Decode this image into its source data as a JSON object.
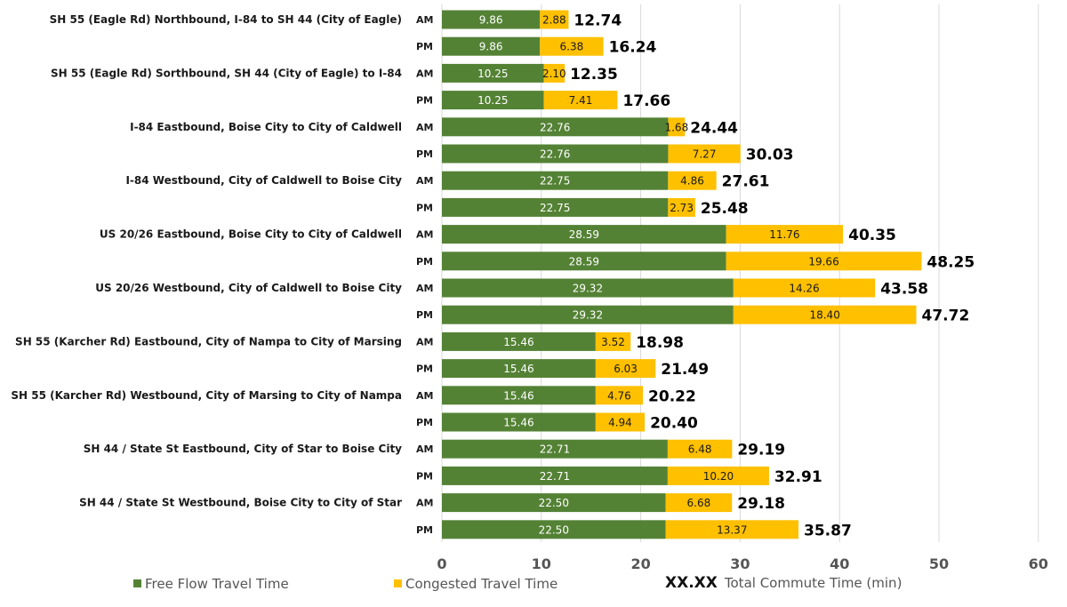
{
  "chart_data": {
    "type": "bar",
    "orientation": "horizontal",
    "stacked": true,
    "title": "",
    "xlabel": "",
    "ylabel": "",
    "xlim": [
      0,
      60
    ],
    "x_ticks": [
      "0",
      "10",
      "20",
      "30",
      "40",
      "50",
      "60"
    ],
    "grid": "vertical",
    "legend_position": "bottom",
    "colors": {
      "free_flow": "#548235",
      "congested": "#FFC000"
    },
    "categories": [
      {
        "route": "SH 55 (Eagle Rd) Northbound, I-84 to SH 44 (City of Eagle)",
        "period": "AM"
      },
      {
        "route": "",
        "period": "PM"
      },
      {
        "route": "SH 55 (Eagle Rd) Sorthbound, SH 44 (City of Eagle) to I-84",
        "period": "AM"
      },
      {
        "route": "",
        "period": "PM"
      },
      {
        "route": "I-84 Eastbound, Boise City to City of Caldwell",
        "period": "AM"
      },
      {
        "route": "",
        "period": "PM"
      },
      {
        "route": "I-84 Westbound, City of Caldwell to Boise City",
        "period": "AM"
      },
      {
        "route": "",
        "period": "PM"
      },
      {
        "route": "US 20/26 Eastbound, Boise City to City of Caldwell",
        "period": "AM"
      },
      {
        "route": "",
        "period": "PM"
      },
      {
        "route": "US 20/26 Westbound, City of Caldwell to Boise City",
        "period": "AM"
      },
      {
        "route": "",
        "period": "PM"
      },
      {
        "route": "SH 55 (Karcher Rd) Eastbound, City of Nampa to City of Marsing",
        "period": "AM"
      },
      {
        "route": "",
        "period": "PM"
      },
      {
        "route": "SH 55 (Karcher Rd) Westbound, City of Marsing to City of Nampa",
        "period": "AM"
      },
      {
        "route": "",
        "period": "PM"
      },
      {
        "route": "SH 44 / State St Eastbound, City of Star to Boise City",
        "period": "AM"
      },
      {
        "route": "",
        "period": "PM"
      },
      {
        "route": "SH 44 / State St Westbound, Boise City to City of Star",
        "period": "AM"
      },
      {
        "route": "",
        "period": "PM"
      }
    ],
    "series": [
      {
        "name": "Free Flow Travel Time",
        "values": [
          9.86,
          9.86,
          10.25,
          10.25,
          22.76,
          22.76,
          22.75,
          22.75,
          28.59,
          28.59,
          29.32,
          29.32,
          15.46,
          15.46,
          15.46,
          15.46,
          22.71,
          22.71,
          22.5,
          22.5
        ],
        "labels": [
          "9.86",
          "9.86",
          "10.25",
          "10.25",
          "22.76",
          "22.76",
          "22.75",
          "22.75",
          "28.59",
          "28.59",
          "29.32",
          "29.32",
          "15.46",
          "15.46",
          "15.46",
          "15.46",
          "22.71",
          "22.71",
          "22.50",
          "22.50"
        ]
      },
      {
        "name": "Congested Travel Time",
        "values": [
          2.88,
          6.38,
          2.1,
          7.41,
          1.68,
          7.27,
          4.86,
          2.73,
          11.76,
          19.66,
          14.26,
          18.4,
          3.52,
          6.03,
          4.76,
          4.94,
          6.48,
          10.2,
          6.68,
          13.37
        ],
        "labels": [
          "2.88",
          "6.38",
          "2.10",
          "7.41",
          "1.68",
          "7.27",
          "4.86",
          "2.73",
          "11.76",
          "19.66",
          "14.26",
          "18.40",
          "3.52",
          "6.03",
          "4.76",
          "4.94",
          "6.48",
          "10.20",
          "6.68",
          "13.37"
        ]
      }
    ],
    "totals": [
      "12.74",
      "16.24",
      "12.35",
      "17.66",
      "24.44",
      "30.03",
      "27.61",
      "25.48",
      "40.35",
      "48.25",
      "43.58",
      "47.72",
      "18.98",
      "21.49",
      "20.22",
      "20.40",
      "29.19",
      "32.91",
      "29.18",
      "35.87"
    ]
  },
  "legend": {
    "free_flow_label": "Free Flow Travel Time",
    "congested_label": "Congested Travel Time",
    "total_sample": "XX.XX",
    "total_label": "Total Commute Time (min)"
  }
}
